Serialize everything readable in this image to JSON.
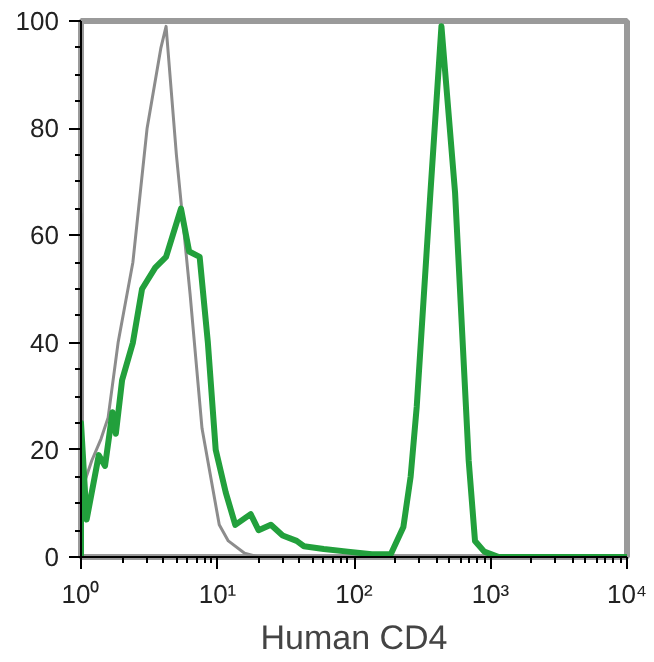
{
  "chart_data": {
    "type": "line",
    "xlabel": "Human CD4",
    "log": "x",
    "xlim": [
      1,
      10000
    ],
    "ylim": [
      0,
      100
    ],
    "xticks": [
      {
        "value": 1,
        "label": "10⁰"
      },
      {
        "value": 10,
        "label": "10¹"
      },
      {
        "value": 100,
        "label": "10²"
      },
      {
        "value": 1000,
        "label": "10³"
      },
      {
        "value": 10000,
        "label": "10⁴"
      }
    ],
    "yticks": [
      0,
      20,
      40,
      60,
      80,
      100
    ],
    "grid": false,
    "line_style": "solid",
    "marker": "none",
    "series": [
      {
        "color": "#8c8c8c",
        "x": [
          1,
          1,
          1.03,
          1.2,
          1.4,
          1.58,
          1.87,
          2.4,
          3.05,
          3.85,
          4.2,
          5.0,
          6.3,
          7.7,
          10.3,
          12,
          15.8,
          20,
          10000
        ],
        "values": [
          0,
          64,
          13,
          18,
          22,
          26,
          40,
          55,
          80,
          95,
          99,
          75,
          49,
          24,
          6,
          3,
          0.7,
          0,
          0
        ]
      },
      {
        "color": "#22a03c",
        "x": [
          1,
          1,
          1.1,
          1.35,
          1.5,
          1.7,
          1.8,
          2.0,
          2.4,
          2.8,
          3.5,
          4.2,
          5.4,
          6.2,
          7.4,
          8.5,
          9.7,
          11.5,
          13.5,
          17.5,
          20,
          24.6,
          30,
          38,
          43,
          60,
          90,
          135,
          186,
          230,
          260,
          288,
          363,
          437,
          550,
          692,
          770,
          900,
          1150,
          10000
        ],
        "values": [
          0,
          25,
          7,
          19,
          17,
          27,
          23,
          33,
          40,
          50,
          54,
          56,
          65,
          57,
          56,
          40,
          20,
          12,
          6,
          8,
          5,
          6,
          4,
          3,
          2,
          1.5,
          1,
          0.5,
          0.5,
          5.6,
          15,
          28,
          68,
          99,
          68,
          18,
          3,
          1,
          0,
          0
        ]
      }
    ]
  }
}
